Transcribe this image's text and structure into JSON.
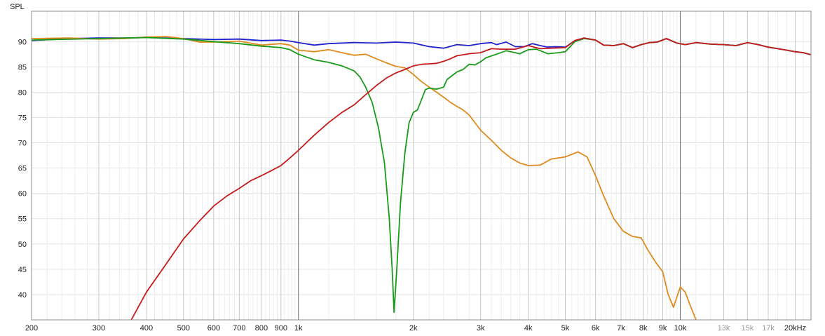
{
  "chart_data": {
    "type": "line",
    "ylabel": "SPL",
    "x_scale": "log",
    "xlim": [
      200,
      22000
    ],
    "ylim": [
      35,
      96
    ],
    "grid": true,
    "y_ticks": [
      40,
      45,
      50,
      55,
      60,
      65,
      70,
      75,
      80,
      85,
      90
    ],
    "x_ticks": [
      {
        "value": 200,
        "label": "200"
      },
      {
        "value": 300,
        "label": "300"
      },
      {
        "value": 400,
        "label": "400"
      },
      {
        "value": 500,
        "label": "500"
      },
      {
        "value": 600,
        "label": "600"
      },
      {
        "value": 700,
        "label": "700"
      },
      {
        "value": 800,
        "label": "800"
      },
      {
        "value": 900,
        "label": "900"
      },
      {
        "value": 1000,
        "label": "1k"
      },
      {
        "value": 2000,
        "label": "2k"
      },
      {
        "value": 3000,
        "label": "3k"
      },
      {
        "value": 4000,
        "label": "4k"
      },
      {
        "value": 5000,
        "label": "5k"
      },
      {
        "value": 6000,
        "label": "6k"
      },
      {
        "value": 7000,
        "label": "7k"
      },
      {
        "value": 8000,
        "label": "8k"
      },
      {
        "value": 9000,
        "label": "9k"
      },
      {
        "value": 10000,
        "label": "10k"
      },
      {
        "value": 13000,
        "label": "13k",
        "dim": true
      },
      {
        "value": 15000,
        "label": "15k",
        "dim": true
      },
      {
        "value": 17000,
        "label": "17k",
        "dim": true
      },
      {
        "value": 20000,
        "label": "20kHz"
      }
    ],
    "series": [
      {
        "color": "#2222cc",
        "points": [
          [
            200,
            90.2
          ],
          [
            250,
            90.6
          ],
          [
            300,
            90.7
          ],
          [
            350,
            90.7
          ],
          [
            400,
            90.8
          ],
          [
            450,
            90.7
          ],
          [
            500,
            90.6
          ],
          [
            600,
            90.4
          ],
          [
            700,
            90.5
          ],
          [
            800,
            90.2
          ],
          [
            900,
            90.3
          ],
          [
            950,
            90.1
          ],
          [
            1000,
            89.8
          ],
          [
            1100,
            89.3
          ],
          [
            1200,
            89.6
          ],
          [
            1400,
            89.8
          ],
          [
            1600,
            89.7
          ],
          [
            1800,
            89.9
          ],
          [
            2000,
            89.7
          ],
          [
            2200,
            89.0
          ],
          [
            2400,
            88.7
          ],
          [
            2600,
            89.4
          ],
          [
            2800,
            89.2
          ],
          [
            3000,
            89.6
          ],
          [
            3200,
            89.8
          ],
          [
            3300,
            89.4
          ],
          [
            3500,
            89.9
          ],
          [
            3700,
            89.0
          ],
          [
            3900,
            89.0
          ],
          [
            4100,
            89.6
          ],
          [
            4300,
            89.2
          ],
          [
            4500,
            88.9
          ],
          [
            4700,
            89.0
          ],
          [
            5000,
            88.9
          ],
          [
            5300,
            90.2
          ],
          [
            5600,
            90.7
          ],
          [
            6000,
            90.3
          ],
          [
            6300,
            89.3
          ],
          [
            6700,
            89.2
          ],
          [
            7100,
            89.6
          ],
          [
            7500,
            88.8
          ],
          [
            7900,
            89.4
          ],
          [
            8300,
            89.8
          ],
          [
            8700,
            89.9
          ],
          [
            9200,
            90.6
          ],
          [
            9800,
            89.7
          ],
          [
            10300,
            89.4
          ],
          [
            11000,
            89.8
          ],
          [
            12000,
            89.5
          ],
          [
            13000,
            89.4
          ],
          [
            14000,
            89.2
          ],
          [
            15000,
            89.8
          ],
          [
            16000,
            89.4
          ],
          [
            17000,
            88.9
          ],
          [
            18000,
            88.6
          ],
          [
            19000,
            88.3
          ],
          [
            20000,
            88.0
          ],
          [
            21000,
            87.8
          ],
          [
            22000,
            87.4
          ]
        ]
      },
      {
        "color": "#e08a1e",
        "points": [
          [
            200,
            90.6
          ],
          [
            250,
            90.7
          ],
          [
            300,
            90.5
          ],
          [
            350,
            90.6
          ],
          [
            400,
            90.9
          ],
          [
            450,
            91.0
          ],
          [
            500,
            90.6
          ],
          [
            550,
            89.9
          ],
          [
            600,
            89.9
          ],
          [
            700,
            90.1
          ],
          [
            800,
            89.3
          ],
          [
            900,
            89.6
          ],
          [
            950,
            89.3
          ],
          [
            1000,
            88.3
          ],
          [
            1100,
            88.0
          ],
          [
            1200,
            88.4
          ],
          [
            1300,
            87.8
          ],
          [
            1400,
            87.3
          ],
          [
            1500,
            87.5
          ],
          [
            1600,
            86.6
          ],
          [
            1700,
            85.8
          ],
          [
            1800,
            85.1
          ],
          [
            1900,
            84.8
          ],
          [
            2000,
            83.5
          ],
          [
            2100,
            82.1
          ],
          [
            2200,
            81.0
          ],
          [
            2300,
            80.0
          ],
          [
            2400,
            79.0
          ],
          [
            2500,
            78.0
          ],
          [
            2600,
            77.2
          ],
          [
            2700,
            76.5
          ],
          [
            2800,
            75.5
          ],
          [
            3000,
            72.5
          ],
          [
            3200,
            70.5
          ],
          [
            3400,
            68.5
          ],
          [
            3600,
            67.0
          ],
          [
            3800,
            66.0
          ],
          [
            4000,
            65.5
          ],
          [
            4300,
            65.6
          ],
          [
            4600,
            66.8
          ],
          [
            5000,
            67.2
          ],
          [
            5400,
            68.2
          ],
          [
            5700,
            67.2
          ],
          [
            6000,
            63.5
          ],
          [
            6300,
            59.5
          ],
          [
            6700,
            55.0
          ],
          [
            7100,
            52.5
          ],
          [
            7500,
            51.5
          ],
          [
            7900,
            51.2
          ],
          [
            8200,
            49.0
          ],
          [
            8600,
            46.5
          ],
          [
            9000,
            44.5
          ],
          [
            9300,
            40.0
          ],
          [
            9600,
            37.5
          ],
          [
            10000,
            41.5
          ],
          [
            10300,
            40.5
          ],
          [
            10600,
            38.0
          ],
          [
            11000,
            35.0
          ]
        ]
      },
      {
        "color": "#1a9a1a",
        "points": [
          [
            200,
            90.3
          ],
          [
            300,
            90.6
          ],
          [
            400,
            90.8
          ],
          [
            500,
            90.5
          ],
          [
            600,
            90.0
          ],
          [
            700,
            89.6
          ],
          [
            800,
            89.1
          ],
          [
            900,
            88.8
          ],
          [
            950,
            88.4
          ],
          [
            1000,
            87.5
          ],
          [
            1100,
            86.4
          ],
          [
            1200,
            85.9
          ],
          [
            1300,
            85.2
          ],
          [
            1400,
            84.2
          ],
          [
            1450,
            83.0
          ],
          [
            1500,
            81.0
          ],
          [
            1560,
            78.0
          ],
          [
            1620,
            73.0
          ],
          [
            1680,
            66.0
          ],
          [
            1730,
            55.0
          ],
          [
            1760,
            45.0
          ],
          [
            1780,
            36.5
          ],
          [
            1810,
            45.0
          ],
          [
            1850,
            58.0
          ],
          [
            1900,
            68.0
          ],
          [
            1950,
            74.0
          ],
          [
            2000,
            76.0
          ],
          [
            2050,
            76.5
          ],
          [
            2100,
            78.5
          ],
          [
            2150,
            80.5
          ],
          [
            2200,
            80.8
          ],
          [
            2300,
            80.6
          ],
          [
            2400,
            81.0
          ],
          [
            2450,
            82.5
          ],
          [
            2600,
            84.0
          ],
          [
            2700,
            84.5
          ],
          [
            2800,
            85.5
          ],
          [
            2900,
            85.4
          ],
          [
            3000,
            86.0
          ],
          [
            3100,
            86.8
          ],
          [
            3300,
            87.5
          ],
          [
            3500,
            88.2
          ],
          [
            3800,
            87.6
          ],
          [
            4000,
            88.4
          ],
          [
            4200,
            88.5
          ],
          [
            4500,
            87.6
          ],
          [
            4800,
            87.8
          ],
          [
            5000,
            88.0
          ],
          [
            5300,
            90.0
          ],
          [
            5600,
            90.6
          ],
          [
            6000,
            90.3
          ],
          [
            6300,
            89.3
          ],
          [
            6700,
            89.2
          ],
          [
            7100,
            89.6
          ],
          [
            7500,
            88.8
          ],
          [
            7900,
            89.4
          ],
          [
            8300,
            89.8
          ],
          [
            8700,
            89.9
          ],
          [
            9200,
            90.6
          ],
          [
            9800,
            89.7
          ],
          [
            10300,
            89.4
          ],
          [
            11000,
            89.8
          ],
          [
            12000,
            89.5
          ],
          [
            13000,
            89.4
          ],
          [
            14000,
            89.2
          ],
          [
            15000,
            89.8
          ],
          [
            16000,
            89.4
          ],
          [
            17000,
            88.9
          ],
          [
            18000,
            88.6
          ],
          [
            19000,
            88.3
          ],
          [
            20000,
            88.0
          ],
          [
            21000,
            87.8
          ],
          [
            22000,
            87.4
          ]
        ]
      },
      {
        "color": "#c41c1c",
        "points": [
          [
            365,
            35.0
          ],
          [
            400,
            40.5
          ],
          [
            450,
            46.0
          ],
          [
            500,
            51.0
          ],
          [
            550,
            54.5
          ],
          [
            600,
            57.5
          ],
          [
            650,
            59.5
          ],
          [
            700,
            61.0
          ],
          [
            750,
            62.5
          ],
          [
            800,
            63.5
          ],
          [
            850,
            64.5
          ],
          [
            900,
            65.5
          ],
          [
            950,
            67.0
          ],
          [
            1000,
            68.5
          ],
          [
            1100,
            71.5
          ],
          [
            1200,
            74.0
          ],
          [
            1300,
            76.0
          ],
          [
            1400,
            77.5
          ],
          [
            1500,
            79.5
          ],
          [
            1600,
            81.3
          ],
          [
            1700,
            82.8
          ],
          [
            1800,
            83.8
          ],
          [
            1900,
            84.5
          ],
          [
            2000,
            85.2
          ],
          [
            2100,
            85.5
          ],
          [
            2200,
            85.6
          ],
          [
            2300,
            85.7
          ],
          [
            2400,
            86.1
          ],
          [
            2500,
            86.6
          ],
          [
            2600,
            87.2
          ],
          [
            2800,
            87.6
          ],
          [
            3000,
            87.8
          ],
          [
            3200,
            88.6
          ],
          [
            3400,
            88.5
          ],
          [
            3700,
            88.5
          ],
          [
            4000,
            89.2
          ],
          [
            4300,
            88.6
          ],
          [
            4600,
            88.7
          ],
          [
            5000,
            88.8
          ],
          [
            5300,
            90.2
          ],
          [
            5600,
            90.7
          ],
          [
            6000,
            90.3
          ],
          [
            6300,
            89.3
          ],
          [
            6700,
            89.2
          ],
          [
            7100,
            89.6
          ],
          [
            7500,
            88.8
          ],
          [
            7900,
            89.4
          ],
          [
            8300,
            89.8
          ],
          [
            8700,
            89.9
          ],
          [
            9200,
            90.6
          ],
          [
            9800,
            89.7
          ],
          [
            10300,
            89.4
          ],
          [
            11000,
            89.8
          ],
          [
            12000,
            89.5
          ],
          [
            13000,
            89.4
          ],
          [
            14000,
            89.2
          ],
          [
            15000,
            89.8
          ],
          [
            16000,
            89.4
          ],
          [
            17000,
            88.9
          ],
          [
            18000,
            88.6
          ],
          [
            19000,
            88.3
          ],
          [
            20000,
            88.0
          ],
          [
            21000,
            87.8
          ],
          [
            22000,
            87.4
          ]
        ]
      }
    ]
  }
}
